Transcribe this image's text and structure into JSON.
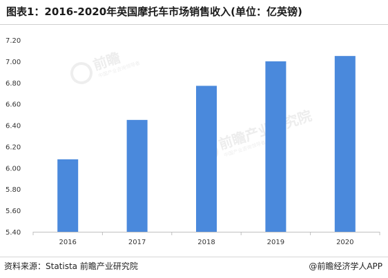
{
  "title": "图表1：2016-2020年英国摩托车市场销售收入(单位：亿英镑)",
  "source": "资料来源：Statista 前瞻产业研究院",
  "brand": "@前瞻经济学人APP",
  "watermark": {
    "name": "前瞻产业研究院",
    "name_short": "前瞻",
    "tagline": "中国产业咨询领导者"
  },
  "chart_data": {
    "type": "bar",
    "categories": [
      "2016",
      "2017",
      "2018",
      "2019",
      "2020"
    ],
    "values": [
      6.08,
      6.45,
      6.77,
      7.0,
      7.05
    ],
    "ylim": [
      5.4,
      7.2
    ],
    "yticks": [
      "5.40",
      "5.60",
      "5.80",
      "6.00",
      "6.20",
      "6.40",
      "6.60",
      "6.80",
      "7.00",
      "7.20"
    ],
    "bar_color": "#4a89dc",
    "grid": false
  }
}
